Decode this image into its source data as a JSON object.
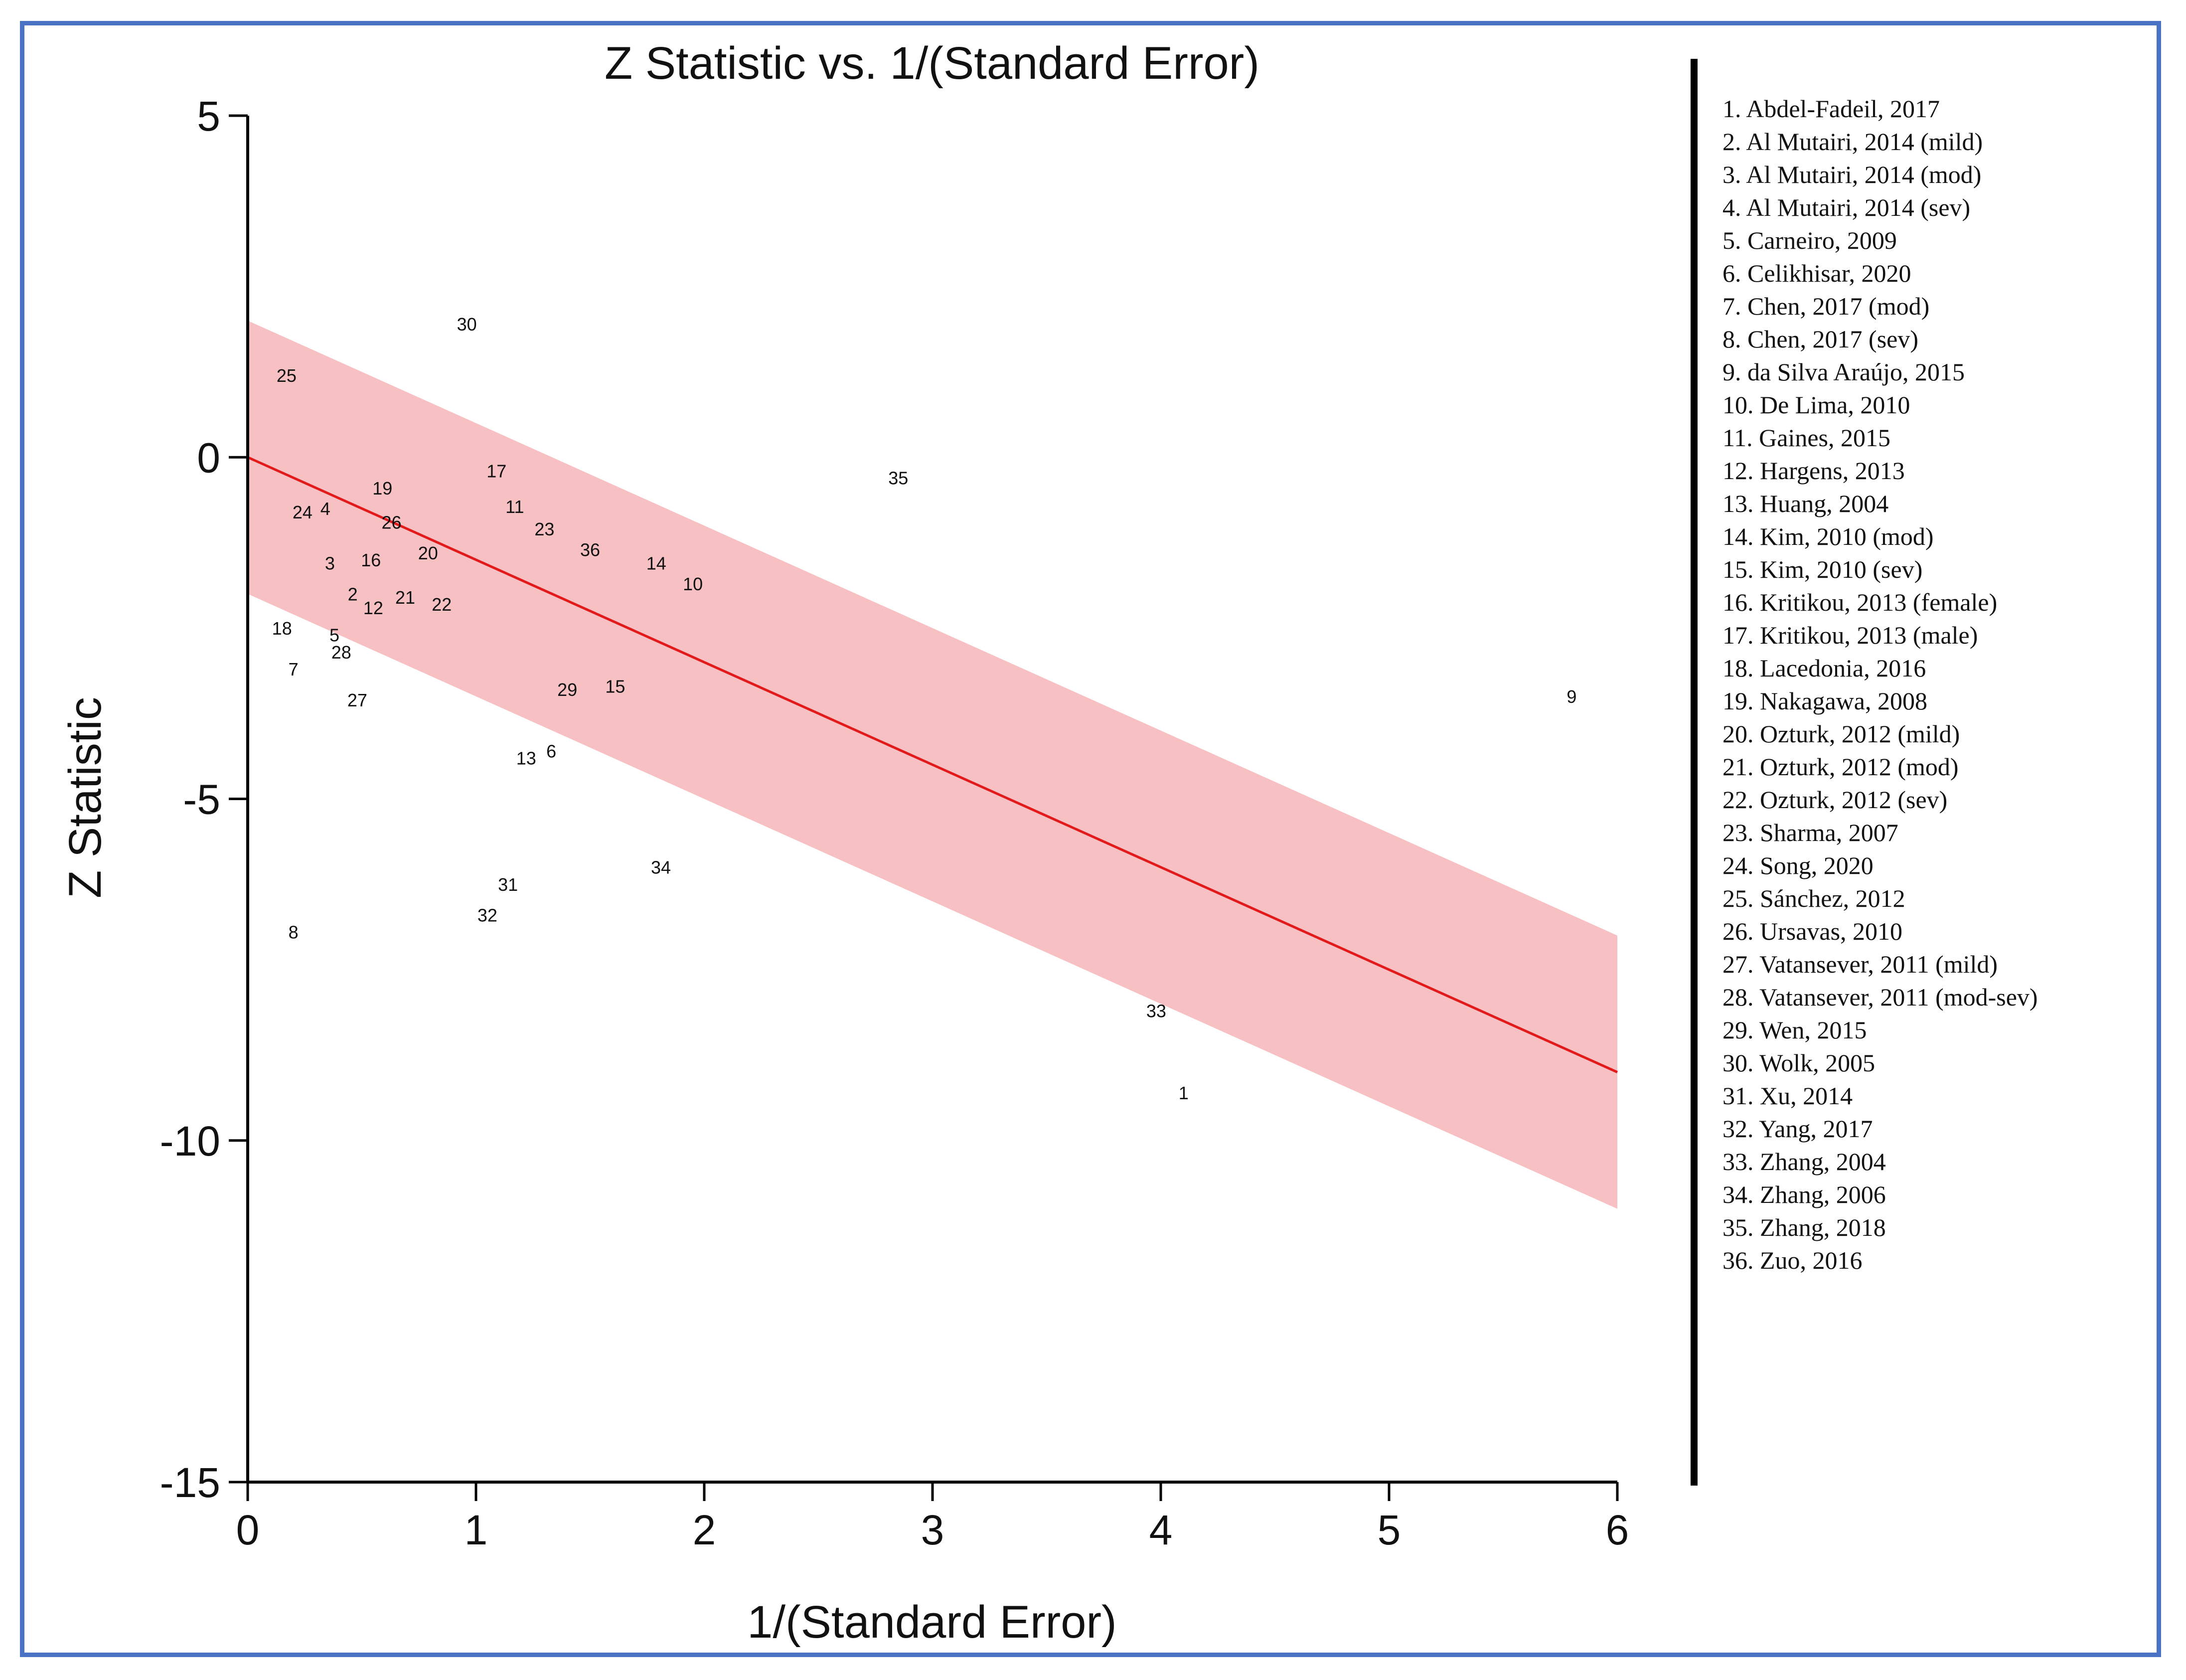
{
  "chart_data": {
    "type": "scatter",
    "title": "Z Statistic vs. 1/(Standard Error)",
    "xlabel": "1/(Standard Error)",
    "ylabel": "Z Statistic",
    "xlim": [
      0,
      6
    ],
    "ylim": [
      -15,
      5
    ],
    "x_ticks": [
      0,
      1,
      2,
      3,
      4,
      5,
      6
    ],
    "y_ticks": [
      5,
      0,
      -5,
      -10,
      -15
    ],
    "grid": false,
    "colors": {
      "regression_line": "#e31a1c",
      "confidence_band": "#f7c1c4",
      "border": "#4a72c4"
    },
    "regression_line": {
      "x": [
        0,
        6
      ],
      "y": [
        0,
        -9.0
      ]
    },
    "confidence_band": {
      "x": [
        0,
        6
      ],
      "upper": [
        2.0,
        -7.0
      ],
      "lower": [
        -2.0,
        -11.0
      ]
    },
    "points": [
      {
        "label": "1",
        "x": 4.1,
        "y": -9.3
      },
      {
        "label": "2",
        "x": 0.46,
        "y": -2.0
      },
      {
        "label": "3",
        "x": 0.36,
        "y": -1.55
      },
      {
        "label": "4",
        "x": 0.34,
        "y": -0.75
      },
      {
        "label": "5",
        "x": 0.38,
        "y": -2.6
      },
      {
        "label": "6",
        "x": 1.33,
        "y": -4.3
      },
      {
        "label": "7",
        "x": 0.2,
        "y": -3.1
      },
      {
        "label": "8",
        "x": 0.2,
        "y": -6.95
      },
      {
        "label": "9",
        "x": 5.8,
        "y": -3.5
      },
      {
        "label": "10",
        "x": 1.95,
        "y": -1.85
      },
      {
        "label": "11",
        "x": 1.17,
        "y": -0.72
      },
      {
        "label": "12",
        "x": 0.55,
        "y": -2.2
      },
      {
        "label": "13",
        "x": 1.22,
        "y": -4.4
      },
      {
        "label": "14",
        "x": 1.79,
        "y": -1.55
      },
      {
        "label": "15",
        "x": 1.61,
        "y": -3.35
      },
      {
        "label": "16",
        "x": 0.54,
        "y": -1.5
      },
      {
        "label": "17",
        "x": 1.09,
        "y": -0.2
      },
      {
        "label": "18",
        "x": 0.15,
        "y": -2.5
      },
      {
        "label": "19",
        "x": 0.59,
        "y": -0.45
      },
      {
        "label": "20",
        "x": 0.79,
        "y": -1.4
      },
      {
        "label": "21",
        "x": 0.69,
        "y": -2.05
      },
      {
        "label": "22",
        "x": 0.85,
        "y": -2.15
      },
      {
        "label": "23",
        "x": 1.3,
        "y": -1.05
      },
      {
        "label": "24",
        "x": 0.24,
        "y": -0.8
      },
      {
        "label": "25",
        "x": 0.17,
        "y": 1.2
      },
      {
        "label": "26",
        "x": 0.63,
        "y": -0.95
      },
      {
        "label": "27",
        "x": 0.48,
        "y": -3.55
      },
      {
        "label": "28",
        "x": 0.41,
        "y": -2.85
      },
      {
        "label": "29",
        "x": 1.4,
        "y": -3.4
      },
      {
        "label": "30",
        "x": 0.96,
        "y": 1.95
      },
      {
        "label": "31",
        "x": 1.14,
        "y": -6.25
      },
      {
        "label": "32",
        "x": 1.05,
        "y": -6.7
      },
      {
        "label": "33",
        "x": 3.98,
        "y": -8.1
      },
      {
        "label": "34",
        "x": 1.81,
        "y": -6.0
      },
      {
        "label": "35",
        "x": 2.85,
        "y": -0.3
      },
      {
        "label": "36",
        "x": 1.5,
        "y": -1.35
      }
    ],
    "legend_position": "right",
    "legend": [
      "1. Abdel-Fadeil, 2017",
      "2. Al Mutairi, 2014 (mild)",
      "3. Al Mutairi, 2014 (mod)",
      "4. Al Mutairi, 2014 (sev)",
      "5. Carneiro, 2009",
      "6. Celikhisar, 2020",
      "7. Chen, 2017 (mod)",
      "8. Chen, 2017 (sev)",
      "9. da Silva Araújo, 2015",
      "10. De Lima, 2010",
      "11. Gaines, 2015",
      "12. Hargens, 2013",
      "13. Huang, 2004",
      "14. Kim, 2010 (mod)",
      "15.  Kim, 2010 (sev)",
      "16. Kritikou, 2013 (female)",
      "17. Kritikou, 2013 (male)",
      "18. Lacedonia, 2016",
      "19. Nakagawa, 2008",
      "20. Ozturk, 2012 (mild)",
      "21. Ozturk, 2012 (mod)",
      "22. Ozturk, 2012 (sev)",
      "23. Sharma, 2007",
      "24. Song, 2020",
      "25. Sánchez, 2012",
      "26. Ursavas, 2010",
      "27. Vatansever, 2011 (mild)",
      "28. Vatansever, 2011 (mod-sev)",
      "29. Wen, 2015",
      "30. Wolk, 2005",
      "31. Xu, 2014",
      "32. Yang, 2017",
      "33. Zhang, 2004",
      "34. Zhang, 2006",
      "35. Zhang, 2018",
      "36. Zuo, 2016"
    ]
  }
}
